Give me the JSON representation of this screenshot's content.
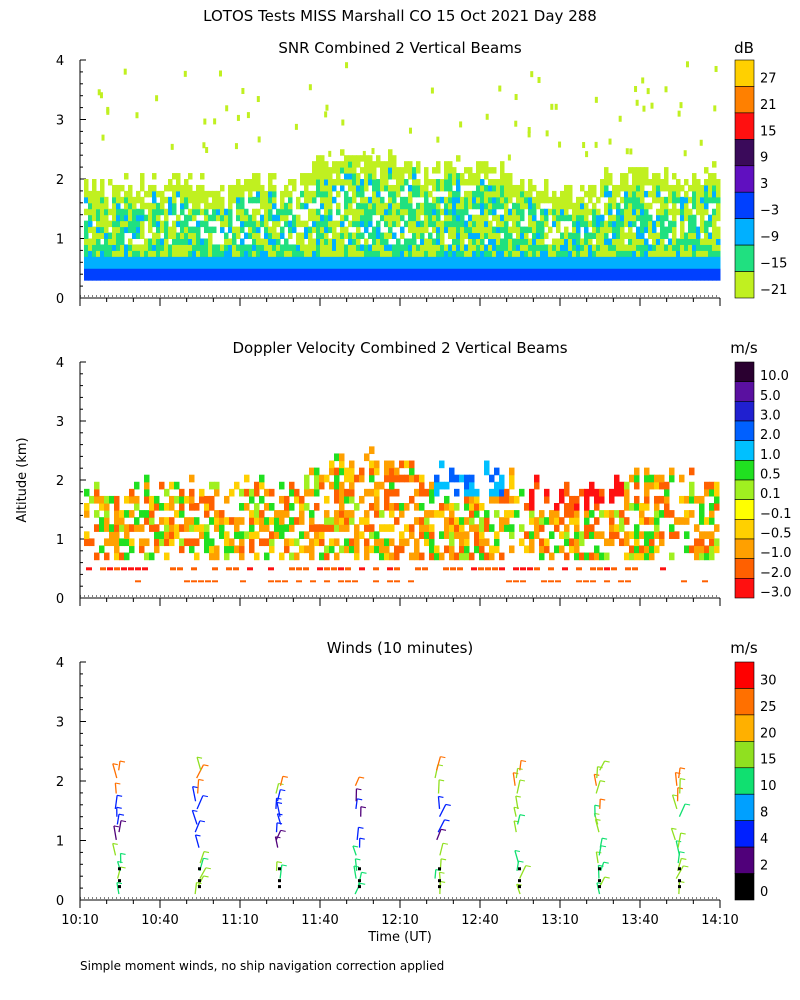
{
  "title": "LOTOS Tests MISS Marshall CO  15 Oct 2021 Day 288",
  "ylabel": "Altitude (km)",
  "xlabel": "Time (UT)",
  "footnote": "Simple moment winds, no ship navigation correction applied",
  "x_ticks": [
    "10:10",
    "10:40",
    "11:10",
    "11:40",
    "12:10",
    "12:40",
    "13:10",
    "13:40",
    "14:10"
  ],
  "chart_data": [
    {
      "type": "heatmap",
      "title": "SNR Combined 2 Vertical Beams",
      "unit": "dB",
      "ylim": [
        0,
        4
      ],
      "y_ticks": [
        "0",
        "1",
        "2",
        "3",
        "4"
      ],
      "colorbar": {
        "labels": [
          "27",
          "21",
          "15",
          "9",
          "3",
          "−3",
          "−9",
          "−15",
          "−21"
        ],
        "colors": [
          "#ffd000",
          "#ff8000",
          "#ff1010",
          "#3a0a5a",
          "#6010c0",
          "#0040ff",
          "#00b0ff",
          "#20e080",
          "#c0f020"
        ]
      }
    },
    {
      "type": "heatmap",
      "title": "Doppler Velocity Combined 2 Vertical Beams",
      "unit": "m/s",
      "ylim": [
        0,
        4
      ],
      "y_ticks": [
        "0",
        "1",
        "2",
        "3",
        "4"
      ],
      "colorbar": {
        "labels": [
          "10.0",
          "5.0",
          "3.0",
          "2.0",
          "1.0",
          "0.5",
          "0.1",
          "−0.1",
          "−0.5",
          "−1.0",
          "−2.0",
          "−3.0"
        ],
        "colors": [
          "#2a0030",
          "#5a10a0",
          "#2020d0",
          "#0060ff",
          "#00c0ff",
          "#20e020",
          "#a0f020",
          "#ffff00",
          "#ffd000",
          "#ffa000",
          "#ff6000",
          "#ff1010"
        ]
      }
    },
    {
      "type": "scatter",
      "title": "Winds (10 minutes)",
      "unit": "m/s",
      "ylim": [
        0,
        4
      ],
      "y_ticks": [
        "0",
        "1",
        "2",
        "3",
        "4"
      ],
      "colorbar": {
        "labels": [
          "30",
          "25",
          "20",
          "15",
          "10",
          "8",
          "4",
          "2",
          "0"
        ],
        "colors": [
          "#ff0000",
          "#ff7000",
          "#ffb000",
          "#90e020",
          "#10e070",
          "#00a0ff",
          "#0020ff",
          "#50007a",
          "#000000"
        ]
      }
    }
  ]
}
